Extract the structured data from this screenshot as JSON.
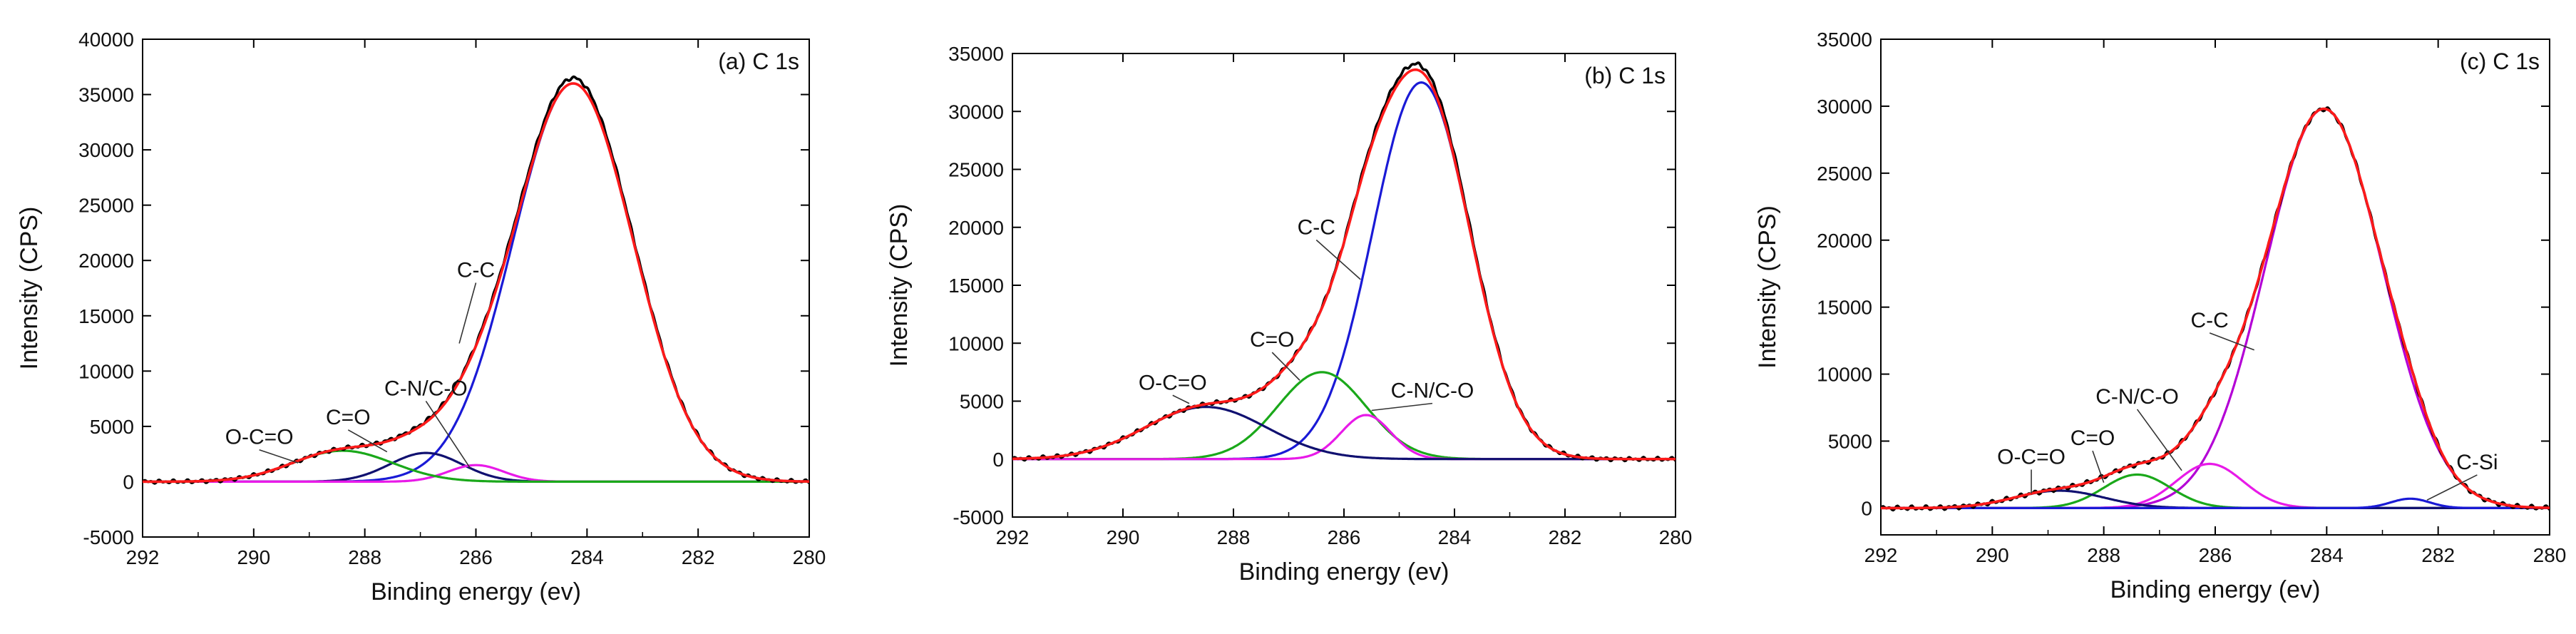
{
  "colors": {
    "black": "#000000",
    "red": "#ff1a1a",
    "blue": "#1a1ad6",
    "green": "#1aa81a",
    "magenta": "#e81ae8",
    "navy": "#101070",
    "purple": "#b400d6"
  },
  "chart_data": [
    {
      "type": "line",
      "title": "(a) C 1s",
      "xlabel": "Binding energy (ev)",
      "ylabel": "Intensity (CPS)",
      "xlim": [
        292,
        280
      ],
      "ylim": [
        -5000,
        40000
      ],
      "x_ticks": [
        292,
        290,
        288,
        286,
        284,
        282,
        280
      ],
      "y_ticks": [
        -5000,
        0,
        5000,
        10000,
        15000,
        20000,
        25000,
        30000,
        35000,
        40000
      ],
      "components": [
        {
          "name": "raw data",
          "color": "black",
          "shape": "raw",
          "peaks": [
            [
              284.25,
              36500,
              1.08
            ],
            [
              286.9,
              2700,
              0.65
            ],
            [
              286.0,
              1500,
              0.5
            ],
            [
              288.4,
              2800,
              0.9
            ]
          ]
        },
        {
          "name": "envelope fit",
          "color": "red",
          "shape": "envelope",
          "peaks": [
            [
              284.25,
              36000,
              1.08
            ],
            [
              286.9,
              2600,
              0.65
            ],
            [
              286.0,
              1500,
              0.5
            ],
            [
              288.4,
              2800,
              0.9
            ]
          ]
        },
        {
          "name": "C-C",
          "color": "blue",
          "shape": "single",
          "peaks": [
            [
              284.25,
              36000,
              1.08
            ]
          ]
        },
        {
          "name": "C-N/C-O",
          "color": "navy",
          "shape": "single",
          "peaks": [
            [
              286.9,
              2600,
              0.65
            ]
          ]
        },
        {
          "name": "C-N/C-O (2)",
          "color": "magenta",
          "shape": "single",
          "peaks": [
            [
              286.0,
              1500,
              0.5
            ]
          ]
        },
        {
          "name": "C=O / O-C=O",
          "color": "green",
          "shape": "single",
          "peaks": [
            [
              288.4,
              2800,
              0.9
            ]
          ]
        }
      ],
      "annotations": [
        {
          "text": "C-C",
          "x": 286.3,
          "y": 12500,
          "tx": 286.0,
          "ty": 18500
        },
        {
          "text": "C-N/C-O",
          "x": 286.1,
          "y": 1200,
          "tx": 286.9,
          "ty": 7800
        },
        {
          "text": "C=O",
          "x": 287.6,
          "y": 2700,
          "tx": 288.3,
          "ty": 5200
        },
        {
          "text": "O-C=O",
          "x": 289.2,
          "y": 1700,
          "tx": 289.9,
          "ty": 3400
        }
      ]
    },
    {
      "type": "line",
      "title": "(b) C 1s",
      "xlabel": "Binding energy (ev)",
      "ylabel": "Intensity (CPS)",
      "xlim": [
        292,
        280
      ],
      "ylim": [
        -5000,
        35000
      ],
      "x_ticks": [
        292,
        290,
        288,
        286,
        284,
        282,
        280
      ],
      "y_ticks": [
        -5000,
        0,
        5000,
        10000,
        15000,
        20000,
        25000,
        30000,
        35000
      ],
      "components": [
        {
          "name": "raw data",
          "color": "black",
          "shape": "raw",
          "peaks": [
            [
              284.6,
              33000,
              0.88
            ],
            [
              286.4,
              7500,
              0.8
            ],
            [
              285.6,
              3800,
              0.45
            ],
            [
              288.5,
              4500,
              1.1
            ]
          ]
        },
        {
          "name": "envelope fit",
          "color": "red",
          "shape": "envelope",
          "peaks": [
            [
              284.6,
              32500,
              0.88
            ],
            [
              286.4,
              7500,
              0.8
            ],
            [
              285.6,
              3800,
              0.45
            ],
            [
              288.5,
              4500,
              1.1
            ]
          ]
        },
        {
          "name": "C-C",
          "color": "blue",
          "shape": "single",
          "peaks": [
            [
              284.6,
              32500,
              0.88
            ]
          ]
        },
        {
          "name": "C=O",
          "color": "green",
          "shape": "single",
          "peaks": [
            [
              286.4,
              7500,
              0.8
            ]
          ]
        },
        {
          "name": "C-N/C-O",
          "color": "magenta",
          "shape": "single",
          "peaks": [
            [
              285.6,
              3800,
              0.45
            ]
          ]
        },
        {
          "name": "O-C=O",
          "color": "navy",
          "shape": "single",
          "peaks": [
            [
              288.5,
              4500,
              1.1
            ]
          ]
        }
      ],
      "annotations": [
        {
          "text": "C-C",
          "x": 285.7,
          "y": 15500,
          "tx": 286.5,
          "ty": 19400
        },
        {
          "text": "C=O",
          "x": 286.8,
          "y": 6800,
          "tx": 287.3,
          "ty": 9700
        },
        {
          "text": "C-N/C-O",
          "x": 285.5,
          "y": 4200,
          "tx": 284.4,
          "ty": 5300
        },
        {
          "text": "O-C=O",
          "x": 288.8,
          "y": 4800,
          "tx": 289.1,
          "ty": 6000
        }
      ]
    },
    {
      "type": "line",
      "title": "(c) C 1s",
      "xlabel": "Binding energy (ev)",
      "ylabel": "Intensity (CPS)",
      "xlim": [
        292,
        280
      ],
      "ylim": [
        -2000,
        35000
      ],
      "x_ticks": [
        292,
        290,
        288,
        286,
        284,
        282,
        280
      ],
      "y_ticks": [
        0,
        5000,
        10000,
        15000,
        20000,
        25000,
        30000,
        35000
      ],
      "components": [
        {
          "name": "raw data",
          "color": "black",
          "shape": "raw",
          "peaks": [
            [
              284.05,
              29800,
              1.05
            ],
            [
              286.1,
              3300,
              0.6
            ],
            [
              287.4,
              2500,
              0.6
            ],
            [
              288.8,
              1300,
              0.8
            ],
            [
              282.5,
              700,
              0.35
            ]
          ]
        },
        {
          "name": "envelope fit",
          "color": "red",
          "shape": "envelope",
          "peaks": [
            [
              284.05,
              29800,
              1.05
            ],
            [
              286.1,
              3300,
              0.6
            ],
            [
              287.4,
              2500,
              0.6
            ],
            [
              288.8,
              1300,
              0.8
            ],
            [
              282.5,
              700,
              0.35
            ]
          ]
        },
        {
          "name": "C-C",
          "color": "purple",
          "shape": "single",
          "peaks": [
            [
              284.05,
              29800,
              1.05
            ]
          ]
        },
        {
          "name": "C-N/C-O",
          "color": "magenta",
          "shape": "single",
          "peaks": [
            [
              286.1,
              3300,
              0.6
            ]
          ]
        },
        {
          "name": "C=O",
          "color": "green",
          "shape": "single",
          "peaks": [
            [
              287.4,
              2500,
              0.6
            ]
          ]
        },
        {
          "name": "O-C=O",
          "color": "navy",
          "shape": "single",
          "peaks": [
            [
              288.8,
              1300,
              0.8
            ]
          ]
        },
        {
          "name": "C-Si",
          "color": "blue",
          "shape": "single",
          "peaks": [
            [
              282.5,
              700,
              0.35
            ]
          ]
        }
      ],
      "annotations": [
        {
          "text": "C-C",
          "x": 285.3,
          "y": 11800,
          "tx": 286.1,
          "ty": 13500
        },
        {
          "text": "C-N/C-O",
          "x": 286.6,
          "y": 2800,
          "tx": 287.4,
          "ty": 7800
        },
        {
          "text": "C=O",
          "x": 288.0,
          "y": 1900,
          "tx": 288.2,
          "ty": 4700
        },
        {
          "text": "O-C=O",
          "x": 289.3,
          "y": 1100,
          "tx": 289.3,
          "ty": 3300
        },
        {
          "text": "C-Si",
          "x": 282.2,
          "y": 600,
          "tx": 281.3,
          "ty": 2900
        }
      ]
    }
  ]
}
